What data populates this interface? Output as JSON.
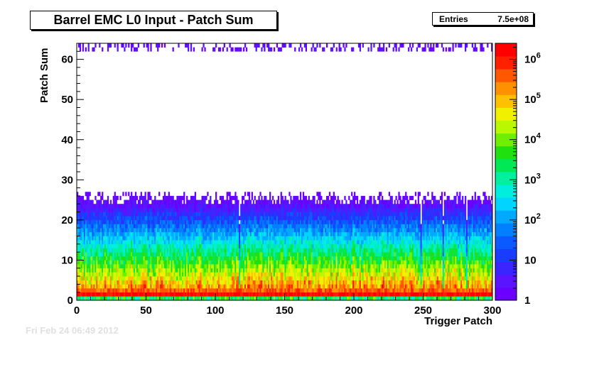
{
  "chart_data": {
    "type": "heatmap",
    "title": "Barrel EMC L0 Input - Patch Sum",
    "xlabel": "Trigger Patch",
    "ylabel": "Patch Sum",
    "xlim": [
      0,
      300
    ],
    "ylim": [
      0,
      64
    ],
    "x_ticks": [
      0,
      50,
      100,
      150,
      200,
      250,
      300
    ],
    "y_ticks": [
      0,
      10,
      20,
      30,
      40,
      50,
      60
    ],
    "z_scale": "log",
    "z_range": [
      1,
      2500000
    ],
    "z_ticks": [
      {
        "value": 1,
        "base": "1",
        "exp": ""
      },
      {
        "value": 10,
        "base": "10",
        "exp": ""
      },
      {
        "value": 100,
        "base": "10",
        "exp": "2"
      },
      {
        "value": 1000,
        "base": "10",
        "exp": "3"
      },
      {
        "value": 10000,
        "base": "10",
        "exp": "4"
      },
      {
        "value": 100000,
        "base": "10",
        "exp": "5"
      },
      {
        "value": 1000000,
        "base": "10",
        "exp": "6"
      }
    ],
    "palette": [
      "#6a00ff",
      "#5a14ff",
      "#3a24ff",
      "#1a3cff",
      "#0a5aff",
      "#0080ff",
      "#00a8ff",
      "#00d4ff",
      "#00eedd",
      "#00f0a0",
      "#00e855",
      "#20e010",
      "#70ee00",
      "#b8f800",
      "#f0f000",
      "#ffc000",
      "#ff9000",
      "#ff5800",
      "#ff2000",
      "#ff0000"
    ],
    "stats": {
      "label": "Entries",
      "value": "7.5e+08"
    },
    "grid": false,
    "legend": "none"
  },
  "footer": {
    "timestamp": "Fri Feb 24 06:49 2012"
  }
}
